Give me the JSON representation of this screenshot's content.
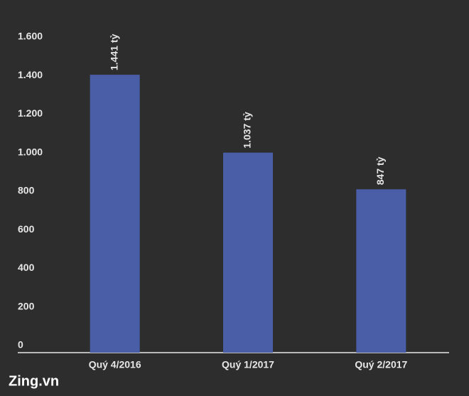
{
  "chart_data": {
    "type": "bar",
    "categories": [
      "Quý 4/2016",
      "Quý 1/2017",
      "Quý 2/2017"
    ],
    "values": [
      1441,
      1037,
      847
    ],
    "value_labels": [
      "1.441 tỷ",
      "1.037 tỷ",
      "847 tỷ"
    ],
    "color": "#4a5ea8",
    "ylim": [
      0,
      1600
    ],
    "yticks": [
      0,
      200,
      400,
      600,
      800,
      {
        "value": 1000,
        "label": "1.000"
      },
      {
        "value": 1200,
        "label": "1.200"
      },
      {
        "value": 1400,
        "label": "1.400"
      },
      {
        "value": 1600,
        "label": "1.600"
      }
    ],
    "grid": false
  },
  "watermark": "Zing.vn"
}
